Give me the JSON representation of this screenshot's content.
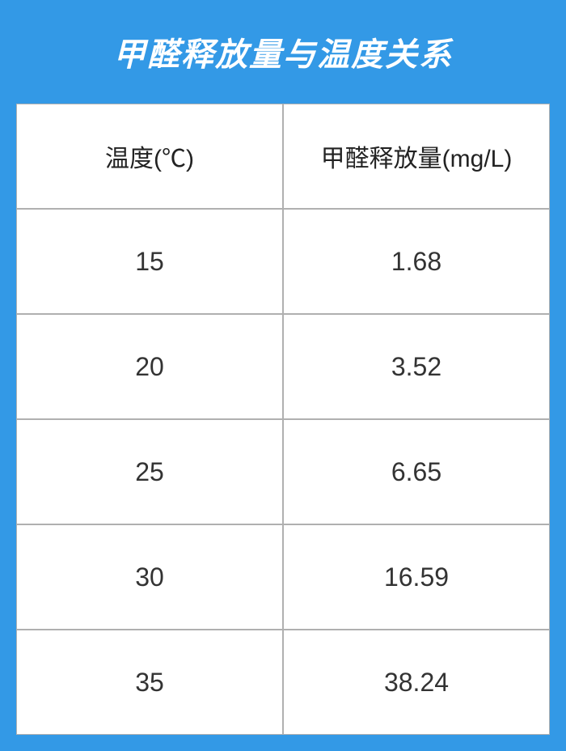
{
  "title": "甲醛释放量与温度关系",
  "table": {
    "columns": [
      "温度(℃)",
      "甲醛释放量(mg/L)"
    ],
    "rows": [
      [
        "15",
        "1.68"
      ],
      [
        "20",
        "3.52"
      ],
      [
        "25",
        "6.65"
      ],
      [
        "30",
        "16.59"
      ],
      [
        "35",
        "38.24"
      ]
    ],
    "header_bg_color": "#3399e6",
    "header_text_color": "#ffffff",
    "cell_bg_color": "#ffffff",
    "cell_text_color": "#333333",
    "border_color": "#b0b0b0",
    "title_fontsize": 40,
    "header_fontsize": 30,
    "cell_fontsize": 32
  }
}
